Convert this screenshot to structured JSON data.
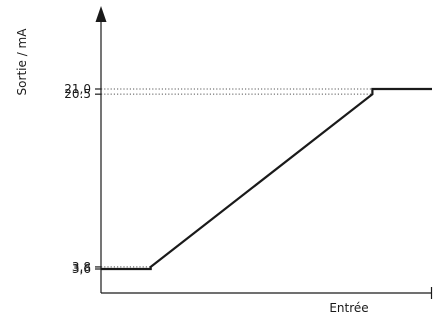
{
  "chart_data": {
    "type": "line",
    "xlabel": "Entrée",
    "ylabel": "Sortie / mA",
    "grid": false,
    "legend": "none",
    "x_ticks_labeled": false,
    "xlim": [
      0,
      100
    ],
    "ylim": [
      2.5,
      24.5
    ],
    "yticks": [
      {
        "value": 3.6,
        "label": "3,6"
      },
      {
        "value": 3.8,
        "label": "3,8"
      },
      {
        "value": 20.5,
        "label": "20.5"
      },
      {
        "value": 21.0,
        "label": "21,0"
      }
    ],
    "series": [
      {
        "x": [
          0,
          15,
          15,
          82,
          82,
          100
        ],
        "y": [
          3.6,
          3.6,
          3.8,
          20.5,
          21.0,
          21.0
        ]
      }
    ],
    "colors": {
      "line": "#1a1a1a",
      "axis": "#1a1a1a",
      "guide": "#555555",
      "text": "#1a1a1a"
    }
  }
}
